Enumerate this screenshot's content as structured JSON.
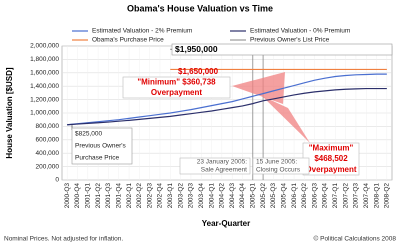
{
  "chart_data": {
    "type": "line",
    "title": "Obama's House Valuation vs Time",
    "y_label": "House Valuation [$USD]",
    "x_label": "Year-Quarter",
    "categories": [
      "2000-Q3",
      "2000-Q4",
      "2001-Q1",
      "2001-Q2",
      "2001-Q3",
      "2001-Q4",
      "2002-Q1",
      "2002-Q2",
      "2002-Q3",
      "2002-Q4",
      "2003-Q1",
      "2003-Q2",
      "2003-Q3",
      "2003-Q4",
      "2004-Q1",
      "2004-Q2",
      "2004-Q3",
      "2004-Q4",
      "2005-Q1",
      "2005-Q2",
      "2005-Q3",
      "2005-Q4",
      "2006-Q1",
      "2006-Q2",
      "2006-Q3",
      "2006-Q4",
      "2007-Q1",
      "2007-Q2",
      "2007-Q3",
      "2007-Q4",
      "2008-Q1",
      "2008-Q2"
    ],
    "series": [
      {
        "name": "Estimated Valuation - 2% Premium",
        "color": "#4a6fd0",
        "values": [
          825000,
          840000,
          855000,
          870000,
          885000,
          900000,
          920000,
          940000,
          960000,
          980000,
          1000000,
          1025000,
          1050000,
          1080000,
          1110000,
          1140000,
          1170000,
          1210000,
          1250000,
          1289262,
          1330000,
          1370000,
          1410000,
          1450000,
          1490000,
          1520000,
          1545000,
          1560000,
          1570000,
          1575000,
          1580000,
          1580000
        ]
      },
      {
        "name": "Estimated Valuation - 0% Premium",
        "color": "#2b2f6b",
        "values": [
          825000,
          835000,
          845000,
          855000,
          865000,
          878000,
          890000,
          905000,
          920000,
          935000,
          950000,
          970000,
          990000,
          1010000,
          1030000,
          1055000,
          1080000,
          1105000,
          1140000,
          1181498,
          1210000,
          1240000,
          1270000,
          1295000,
          1315000,
          1330000,
          1345000,
          1355000,
          1360000,
          1365000,
          1365000,
          1365000
        ]
      },
      {
        "name": "Obama's Purchase Price",
        "color": "#f08040",
        "values": [
          null,
          null,
          null,
          null,
          null,
          null,
          null,
          null,
          null,
          null,
          1650000,
          1650000,
          1650000,
          1650000,
          1650000,
          1650000,
          1650000,
          1650000,
          1650000,
          1650000,
          1650000,
          1650000,
          1650000,
          1650000,
          1650000,
          1650000,
          1650000,
          1650000,
          1650000,
          1650000,
          1650000,
          1650000
        ]
      },
      {
        "name": "Previous Owner's List Price",
        "color": "#999999",
        "values": [
          null,
          null,
          null,
          null,
          null,
          null,
          null,
          null,
          null,
          null,
          1950000,
          1950000,
          1950000,
          1950000,
          1950000,
          1950000,
          1950000,
          1950000,
          1950000,
          1950000,
          1950000,
          1950000,
          1950000,
          1950000,
          1950000,
          1950000,
          1950000,
          1950000,
          1950000,
          1950000,
          1950000,
          1950000
        ]
      }
    ],
    "ylim": [
      0,
      2000000
    ],
    "yticks": [
      0,
      {
        "value": 200000,
        "label": "200,000"
      },
      {
        "value": 400000,
        "label": "400,000"
      },
      {
        "value": 600000,
        "label": "600,000"
      },
      {
        "value": 800000,
        "label": "800,000"
      },
      {
        "value": 1000000,
        "label": "1,000,000"
      },
      {
        "value": 1200000,
        "label": "1,200,000"
      },
      {
        "value": 1400000,
        "label": "1,400,000"
      },
      {
        "value": 1600000,
        "label": "1,600,000"
      },
      {
        "value": 1800000,
        "label": "1,800,000"
      },
      {
        "value": 2000000,
        "label": "2,000,000"
      }
    ],
    "grid": true,
    "annotations": [
      [
        "$1,950,000"
      ],
      [
        "$1,650,000"
      ],
      [
        "\"Minimum\" $360,738",
        "Overpayment"
      ],
      [
        "\"Maximum\"",
        "$468,502",
        "Overpayment"
      ],
      [
        "$825,000",
        "Previous Owner's",
        "Purchase Price"
      ],
      [
        "23 January 2005:",
        "Sale Agreement"
      ],
      [
        "15 June 2005:",
        "Closing Occurs"
      ]
    ],
    "footer_left": "Nominal Prices.  Not adjusted for inflation.",
    "footer_right": "© Political Calculations 2008"
  }
}
